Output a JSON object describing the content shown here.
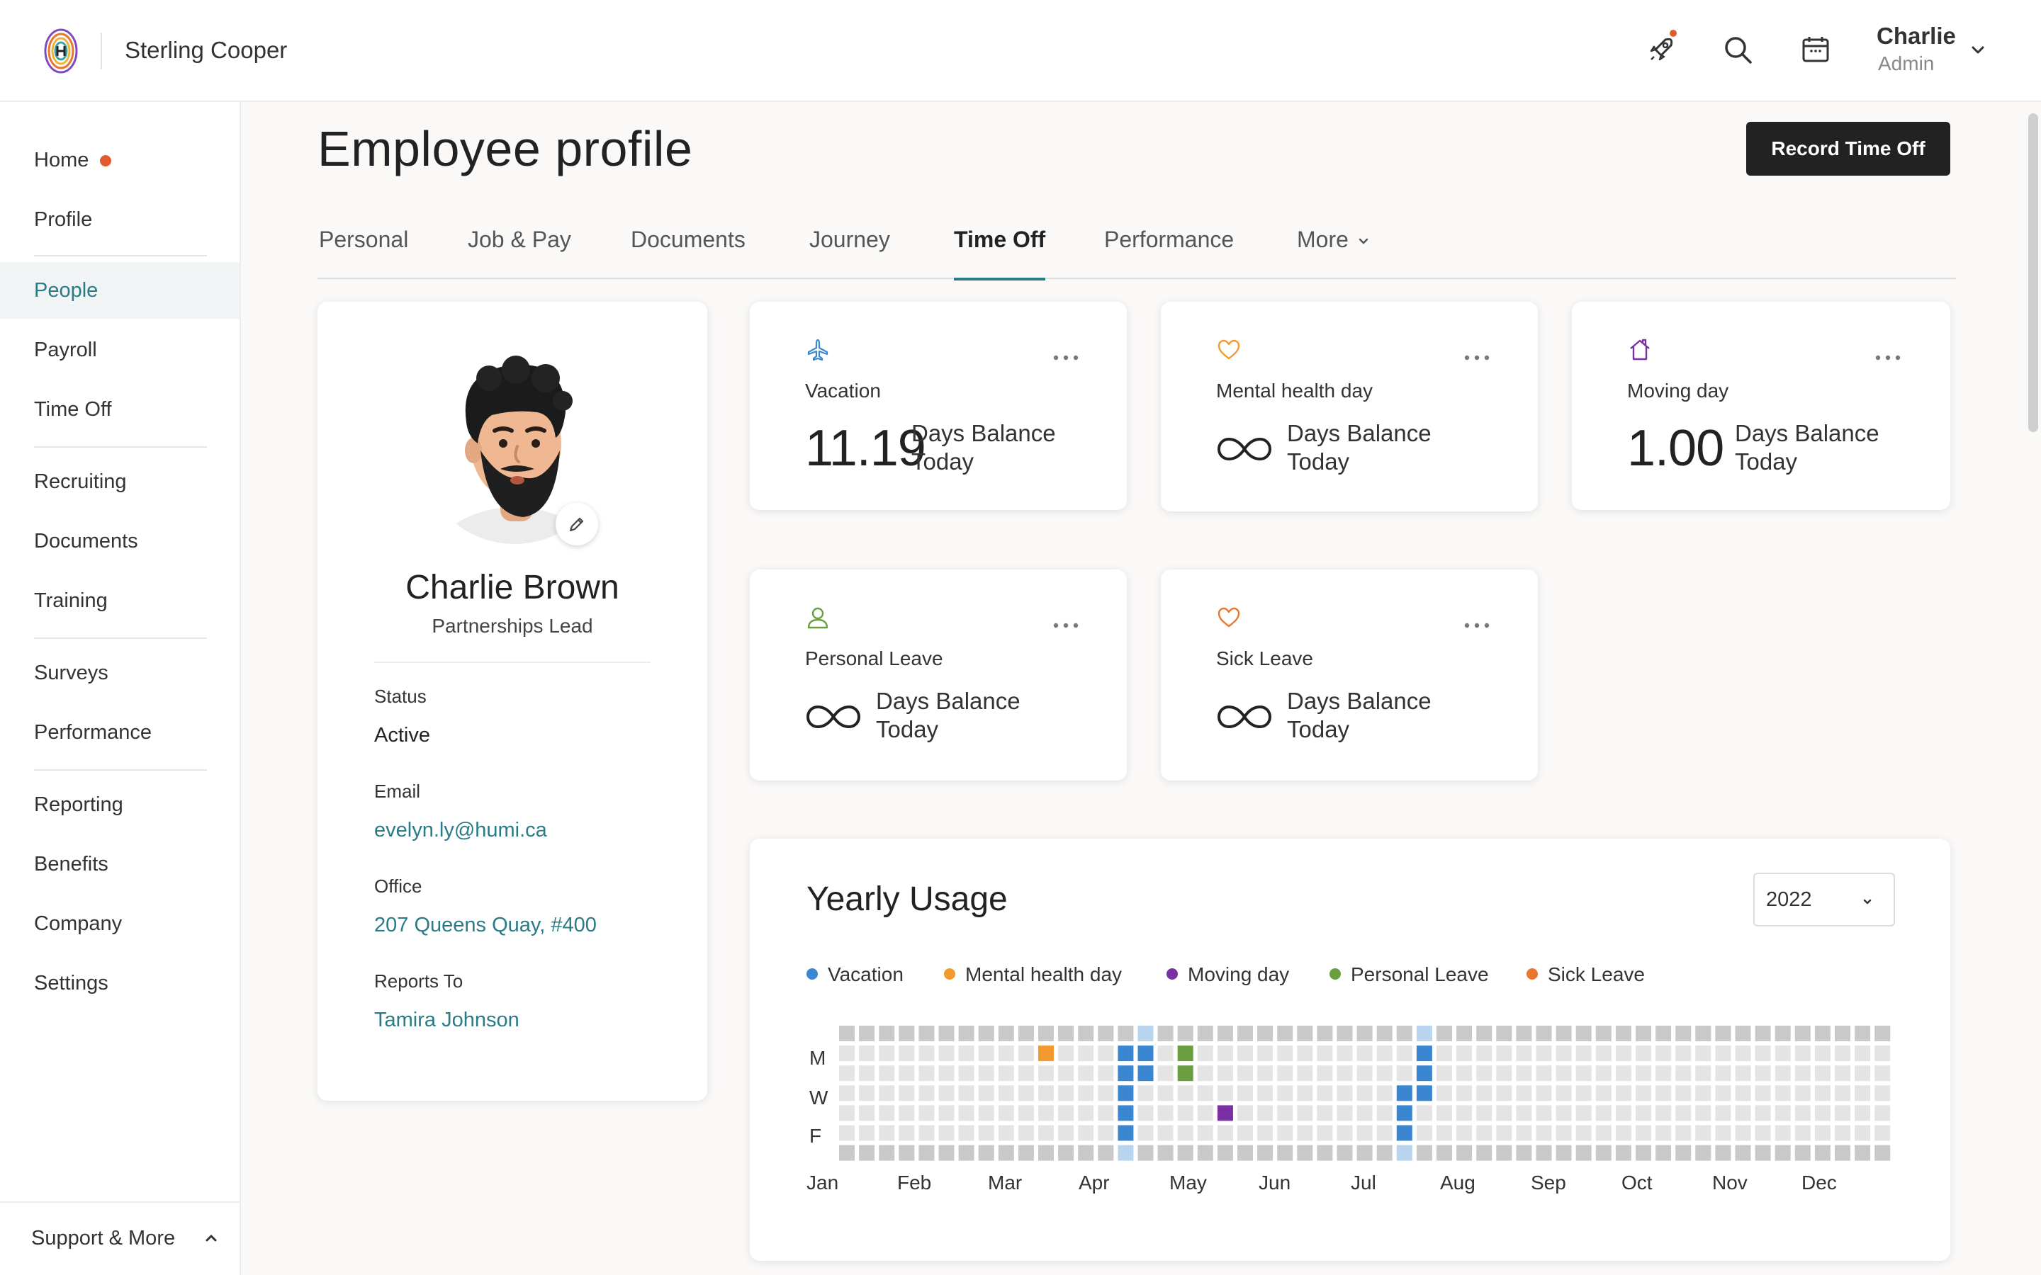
{
  "header": {
    "company": "Sterling Cooper",
    "user": {
      "name": "Charlie",
      "role": "Admin"
    },
    "icons": [
      "rocket-icon",
      "search-icon",
      "calendar-icon"
    ]
  },
  "sidebar": {
    "items": [
      {
        "label": "Home",
        "badge": true
      },
      {
        "label": "Profile"
      },
      {
        "label": "People",
        "active": true
      },
      {
        "label": "Payroll"
      },
      {
        "label": "Time Off"
      },
      {
        "label": "Recruiting"
      },
      {
        "label": "Documents"
      },
      {
        "label": "Training"
      },
      {
        "label": "Surveys"
      },
      {
        "label": "Performance"
      },
      {
        "label": "Reporting"
      },
      {
        "label": "Benefits"
      },
      {
        "label": "Company"
      },
      {
        "label": "Settings"
      }
    ],
    "footer": "Support & More"
  },
  "page": {
    "title": "Employee profile",
    "record_button": "Record Time Off"
  },
  "tabs": [
    {
      "label": "Personal"
    },
    {
      "label": "Job & Pay"
    },
    {
      "label": "Documents"
    },
    {
      "label": "Journey"
    },
    {
      "label": "Time Off",
      "active": true
    },
    {
      "label": "Performance"
    },
    {
      "label": "More"
    }
  ],
  "profile": {
    "name": "Charlie Brown",
    "role": "Partnerships Lead",
    "status_label": "Status",
    "status": "Active",
    "email_label": "Email",
    "email": "evelyn.ly@humi.ca",
    "office_label": "Office",
    "office": "207 Queens Quay, #400",
    "reports_label": "Reports To",
    "reports_to": "Tamira Johnson"
  },
  "balances": [
    {
      "name": "Vacation",
      "value": "11.19",
      "unit": "Days Balance Today",
      "icon": "plane-icon",
      "color": "#3a86d1"
    },
    {
      "name": "Mental health day",
      "value": null,
      "unlimited": true,
      "unit": "Days Balance Today",
      "icon": "heart-icon",
      "color": "#f29a2e"
    },
    {
      "name": "Moving day",
      "value": "1.00",
      "unit": "Days Balance Today",
      "icon": "house-icon",
      "color": "#7a2fa3"
    },
    {
      "name": "Personal Leave",
      "value": null,
      "unlimited": true,
      "unit": "Days Balance Today",
      "icon": "person-icon",
      "color": "#6a9e3f"
    },
    {
      "name": "Sick Leave",
      "value": null,
      "unlimited": true,
      "unit": "Days Balance Today",
      "icon": "heart-icon",
      "color": "#e8762f"
    }
  ],
  "usage": {
    "title": "Yearly Usage",
    "year": "2022",
    "legend": [
      {
        "label": "Vacation",
        "color": "#3a86d1"
      },
      {
        "label": "Mental health day",
        "color": "#f29a2e"
      },
      {
        "label": "Moving day",
        "color": "#7a2fa3"
      },
      {
        "label": "Personal Leave",
        "color": "#6a9e3f"
      },
      {
        "label": "Sick Leave",
        "color": "#e8762f"
      }
    ],
    "day_labels": [
      "M",
      "W",
      "F"
    ],
    "months": [
      "Jan",
      "Feb",
      "Mar",
      "Apr",
      "May",
      "Jun",
      "Jul",
      "Aug",
      "Sep",
      "Oct",
      "Nov",
      "Dec"
    ],
    "weeks": 53,
    "colors": {
      "weekend": "#c9c9c9",
      "weekday": "#e4e4e4",
      "holiday": "#b8d4ee"
    },
    "highlights": [
      {
        "week": 10,
        "day": 1,
        "type": "Mental health day"
      },
      {
        "week": 14,
        "day": 1,
        "type": "Vacation"
      },
      {
        "week": 14,
        "day": 2,
        "type": "Vacation"
      },
      {
        "week": 14,
        "day": 3,
        "type": "Vacation"
      },
      {
        "week": 14,
        "day": 4,
        "type": "Vacation"
      },
      {
        "week": 14,
        "day": 5,
        "type": "Vacation"
      },
      {
        "week": 15,
        "day": 0,
        "type": "holiday"
      },
      {
        "week": 14,
        "day": 6,
        "type": "holiday"
      },
      {
        "week": 15,
        "day": 1,
        "type": "Vacation"
      },
      {
        "week": 15,
        "day": 2,
        "type": "Vacation"
      },
      {
        "week": 17,
        "day": 1,
        "type": "Personal Leave"
      },
      {
        "week": 17,
        "day": 2,
        "type": "Personal Leave"
      },
      {
        "week": 19,
        "day": 4,
        "type": "Moving day"
      },
      {
        "week": 28,
        "day": 3,
        "type": "Vacation"
      },
      {
        "week": 28,
        "day": 4,
        "type": "Vacation"
      },
      {
        "week": 28,
        "day": 5,
        "type": "Vacation"
      },
      {
        "week": 28,
        "day": 6,
        "type": "holiday"
      },
      {
        "week": 29,
        "day": 0,
        "type": "holiday"
      },
      {
        "week": 29,
        "day": 1,
        "type": "Vacation"
      },
      {
        "week": 29,
        "day": 2,
        "type": "Vacation"
      },
      {
        "week": 29,
        "day": 3,
        "type": "Vacation"
      }
    ]
  }
}
